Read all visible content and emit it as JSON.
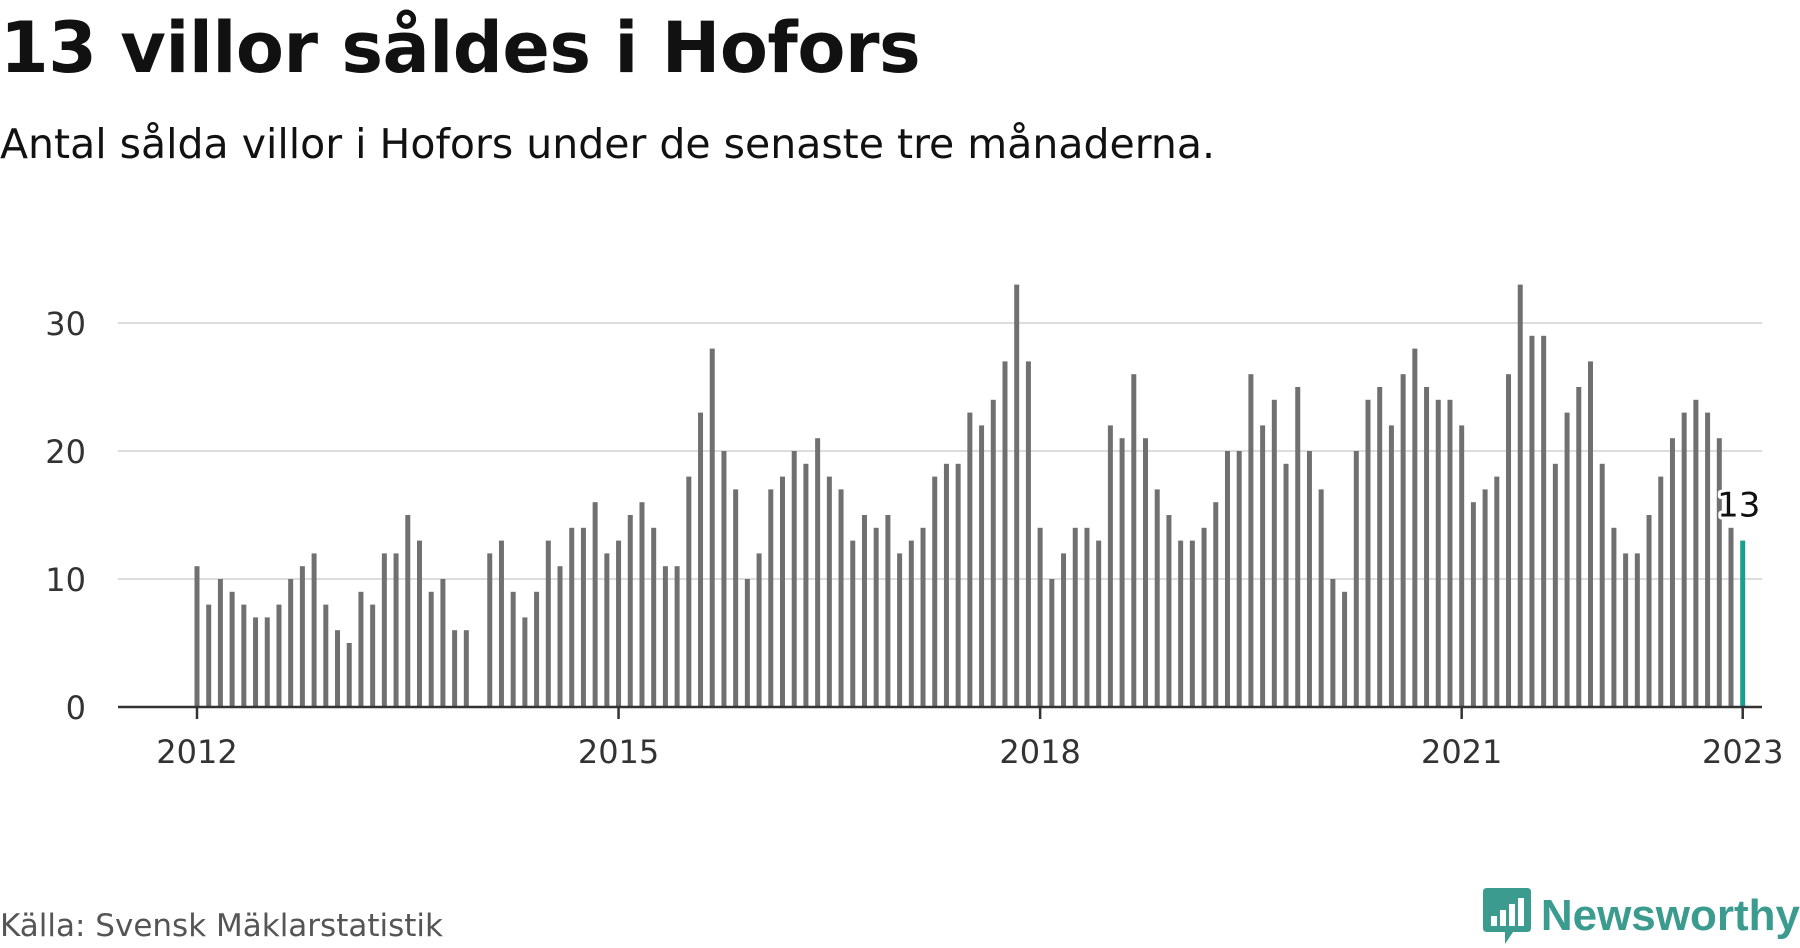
{
  "title": "13 villor såldes i Hofors",
  "subtitle": "Antal sålda villor i Hofors under de senaste tre månaderna.",
  "source": "Källa: Svensk Mäklarstatistik",
  "brand": {
    "name": "Newsworthy",
    "icon": "newsworthy-logo-icon",
    "color": "#3b9b8e"
  },
  "colors": {
    "bar": "#707070",
    "highlight": "#1a9e8f",
    "grid": "#dddddd",
    "axis": "#333333"
  },
  "chart_data": {
    "type": "bar",
    "x_start": "2012-01",
    "x_interval": "month",
    "values": [
      11,
      8,
      10,
      9,
      8,
      7,
      7,
      8,
      10,
      11,
      12,
      8,
      6,
      5,
      9,
      8,
      12,
      12,
      15,
      13,
      9,
      10,
      6,
      6,
      null,
      12,
      13,
      9,
      7,
      9,
      13,
      11,
      14,
      14,
      16,
      12,
      13,
      15,
      16,
      14,
      11,
      11,
      18,
      23,
      28,
      20,
      17,
      10,
      12,
      17,
      18,
      20,
      19,
      21,
      18,
      17,
      13,
      15,
      14,
      15,
      12,
      13,
      14,
      18,
      19,
      19,
      23,
      22,
      24,
      27,
      33,
      27,
      14,
      10,
      12,
      14,
      14,
      13,
      22,
      21,
      26,
      21,
      17,
      15,
      13,
      13,
      14,
      16,
      20,
      20,
      26,
      22,
      24,
      19,
      25,
      20,
      17,
      10,
      9,
      20,
      24,
      25,
      22,
      26,
      28,
      25,
      24,
      24,
      22,
      16,
      17,
      18,
      26,
      33,
      29,
      29,
      19,
      23,
      25,
      27,
      19,
      14,
      12,
      12,
      15,
      18,
      21,
      23,
      24,
      23,
      21,
      14,
      13
    ],
    "xticks": [
      "2012",
      "2015",
      "2018",
      "2021",
      "2023"
    ],
    "xtick_positions": [
      "2012-01",
      "2015-01",
      "2018-01",
      "2021-01",
      "2023-01"
    ],
    "yticks": [
      0,
      10,
      20,
      30
    ],
    "ylim": [
      0,
      33
    ],
    "highlight": {
      "x": "2023-01",
      "value": 13,
      "label": "13"
    },
    "grid": true,
    "legend": "none"
  }
}
